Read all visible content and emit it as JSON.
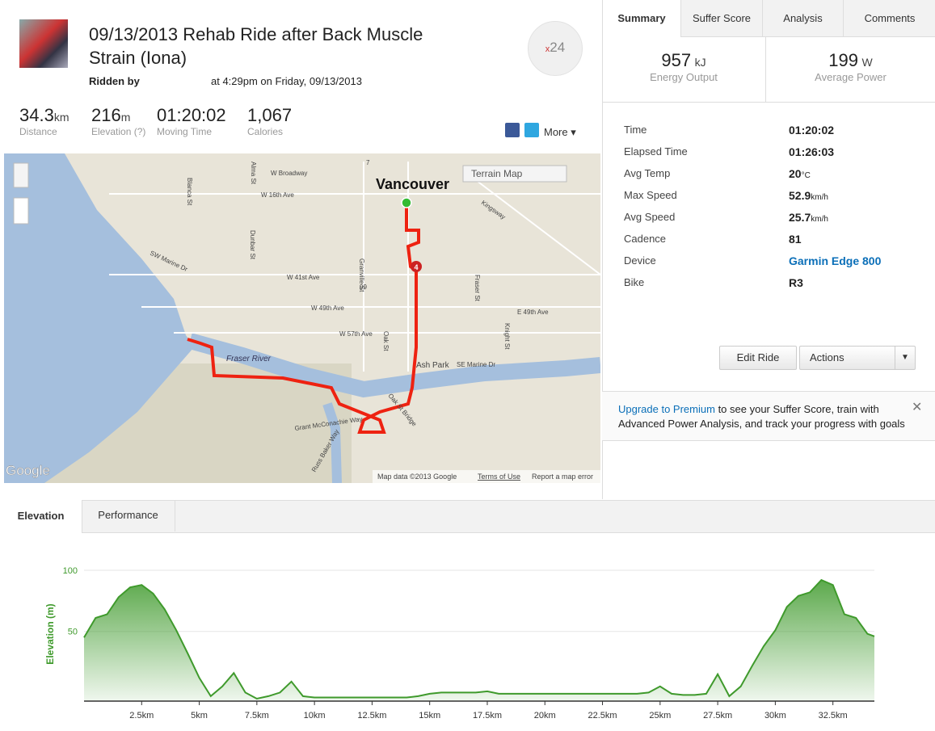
{
  "header": {
    "title": "09/13/2013 Rehab Ride after Back Muscle Strain (Iona)",
    "ridden_by": "Ridden by",
    "time": "at 4:29pm on Friday, 09/13/2013",
    "badge_x": "x",
    "badge_count": "24"
  },
  "stats": [
    {
      "value": "34.3",
      "unit": "km",
      "label": "Distance"
    },
    {
      "value": "216",
      "unit": "m",
      "label": "Elevation (?)"
    },
    {
      "value": "01:20:02",
      "label": "Moving Time"
    },
    {
      "value": "1,067",
      "label": "Calories"
    }
  ],
  "share": {
    "more": "More"
  },
  "map": {
    "type_select": "Terrain Map",
    "city": "Vancouver",
    "labels": [
      "W Broadway",
      "W 16th Ave",
      "W 41st Ave",
      "W 49th Ave",
      "W 57th Ave",
      "SW Marine Dr",
      "Fraser River",
      "Ash Park",
      "SE Marine Dr",
      "E 49th Ave",
      "Kingsway",
      "Grant McConachie Way",
      "Oak St Bridge",
      "Russ Baker Way",
      "Granville St",
      "Dunbar St",
      "Fraser St",
      "Knight St",
      "Oak St",
      "Blanca St",
      "Alma St",
      "99",
      "7"
    ],
    "logo": "Google",
    "attribution": "Map data ©2013 Google",
    "terms": "Terms of Use",
    "report": "Report a map error",
    "marker": "4"
  },
  "tabs": [
    "Summary",
    "Suffer Score",
    "Analysis",
    "Comments"
  ],
  "summary": {
    "energy": {
      "value": "957",
      "unit": "kJ",
      "label": "Energy Output"
    },
    "power": {
      "value": "199",
      "unit": "W",
      "label": "Average Power"
    }
  },
  "details": [
    {
      "label": "Time",
      "value": "01:20:02"
    },
    {
      "label": "Elapsed Time",
      "value": "01:26:03"
    },
    {
      "label": "Avg Temp",
      "value": "20",
      "unit": "°C"
    },
    {
      "label": "Max Speed",
      "value": "52.9",
      "unit": "km/h"
    },
    {
      "label": "Avg Speed",
      "value": "25.7",
      "unit": "km/h"
    },
    {
      "label": "Cadence",
      "value": "81"
    },
    {
      "label": "Device",
      "value": "Garmin Edge 800"
    },
    {
      "label": "Bike",
      "value": "R3"
    }
  ],
  "buttons": {
    "edit": "Edit Ride",
    "actions": "Actions"
  },
  "premium": {
    "link": "Upgrade to Premium",
    "text": " to see your Suffer Score, train with Advanced Power Analysis, and track your progress with goals"
  },
  "bottom_tabs": [
    "Elevation",
    "Performance"
  ],
  "chart_data": {
    "type": "area",
    "y_label": "Elevation (m)",
    "color": "#3f9a2c",
    "x": [
      0,
      0.5,
      1,
      1.5,
      2,
      2.5,
      3,
      3.5,
      4,
      4.5,
      5,
      5.5,
      6,
      6.5,
      7,
      7.5,
      8,
      8.5,
      9,
      9.5,
      10,
      10.5,
      11,
      11.5,
      12,
      12.5,
      13,
      13.5,
      14,
      14.5,
      15,
      15.5,
      16,
      16.5,
      17,
      17.5,
      18,
      18.5,
      19,
      19.5,
      20,
      20.5,
      21,
      21.5,
      22,
      22.5,
      23,
      23.5,
      24,
      24.5,
      25,
      25.5,
      26,
      26.5,
      27,
      27.5,
      28,
      28.5,
      29,
      29.5,
      30,
      30.5,
      31,
      31.5,
      32,
      32.5,
      33,
      33.5,
      34,
      34.3
    ],
    "values": [
      45,
      61,
      64,
      78,
      86,
      88,
      81,
      68,
      51,
      32,
      12,
      -3,
      5,
      16,
      0,
      -5,
      -3,
      0,
      9,
      -3,
      -4,
      -4,
      -4,
      -4,
      -4,
      -4,
      -4,
      -4,
      -4,
      -3,
      -1,
      0,
      0,
      0,
      0,
      1,
      -1,
      -1,
      -1,
      -1,
      -1,
      -1,
      -1,
      -1,
      -1,
      -1,
      -1,
      -1,
      -1,
      0,
      5,
      -1,
      -2,
      -2,
      -1,
      15,
      -3,
      5,
      22,
      38,
      51,
      70,
      79,
      82,
      92,
      88,
      64,
      61,
      48,
      46
    ],
    "xlim": [
      0,
      34.3
    ],
    "ylim": [
      -7,
      100
    ],
    "yticks": [
      50,
      100
    ],
    "xticks": [
      {
        "value": 2.5,
        "label": "2.5km"
      },
      {
        "value": 5,
        "label": "5km"
      },
      {
        "value": 7.5,
        "label": "7.5km"
      },
      {
        "value": 10,
        "label": "10km"
      },
      {
        "value": 12.5,
        "label": "12.5km"
      },
      {
        "value": 15,
        "label": "15km"
      },
      {
        "value": 17.5,
        "label": "17.5km"
      },
      {
        "value": 20,
        "label": "20km"
      },
      {
        "value": 22.5,
        "label": "22.5km"
      },
      {
        "value": 25,
        "label": "25km"
      },
      {
        "value": 27.5,
        "label": "27.5km"
      },
      {
        "value": 30,
        "label": "30km"
      },
      {
        "value": 32.5,
        "label": "32.5km"
      }
    ],
    "grid": true
  }
}
